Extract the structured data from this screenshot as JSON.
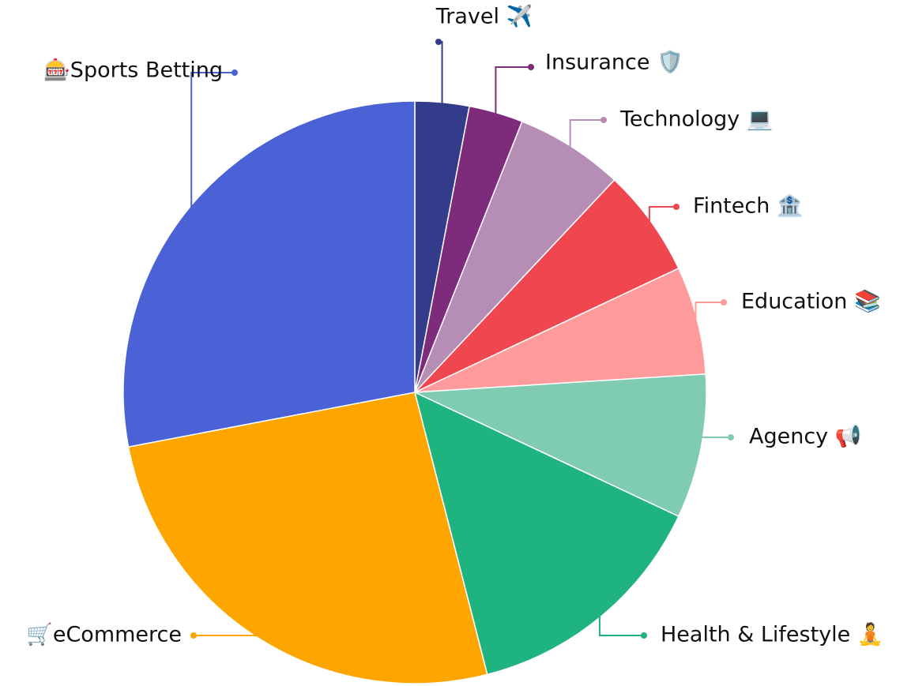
{
  "chart_data": {
    "type": "pie",
    "categories": [
      "Travel ✈️",
      "Insurance 🛡️",
      "Technology 💻",
      "Fintech 🏦",
      "Education 📚",
      "Agency 📢",
      "Health & Lifestyle 🧘",
      "🛒eCommerce",
      "🎰Sports Betting"
    ],
    "values": [
      3,
      3,
      6,
      6,
      6,
      8,
      14,
      26,
      28
    ],
    "colors": [
      "#323c8a",
      "#7f2b7c",
      "#b58db5",
      "#ef4650",
      "#ff9b9d",
      "#80ccb3",
      "#1fb380",
      "#ffa500",
      "#4b62d6"
    ]
  }
}
